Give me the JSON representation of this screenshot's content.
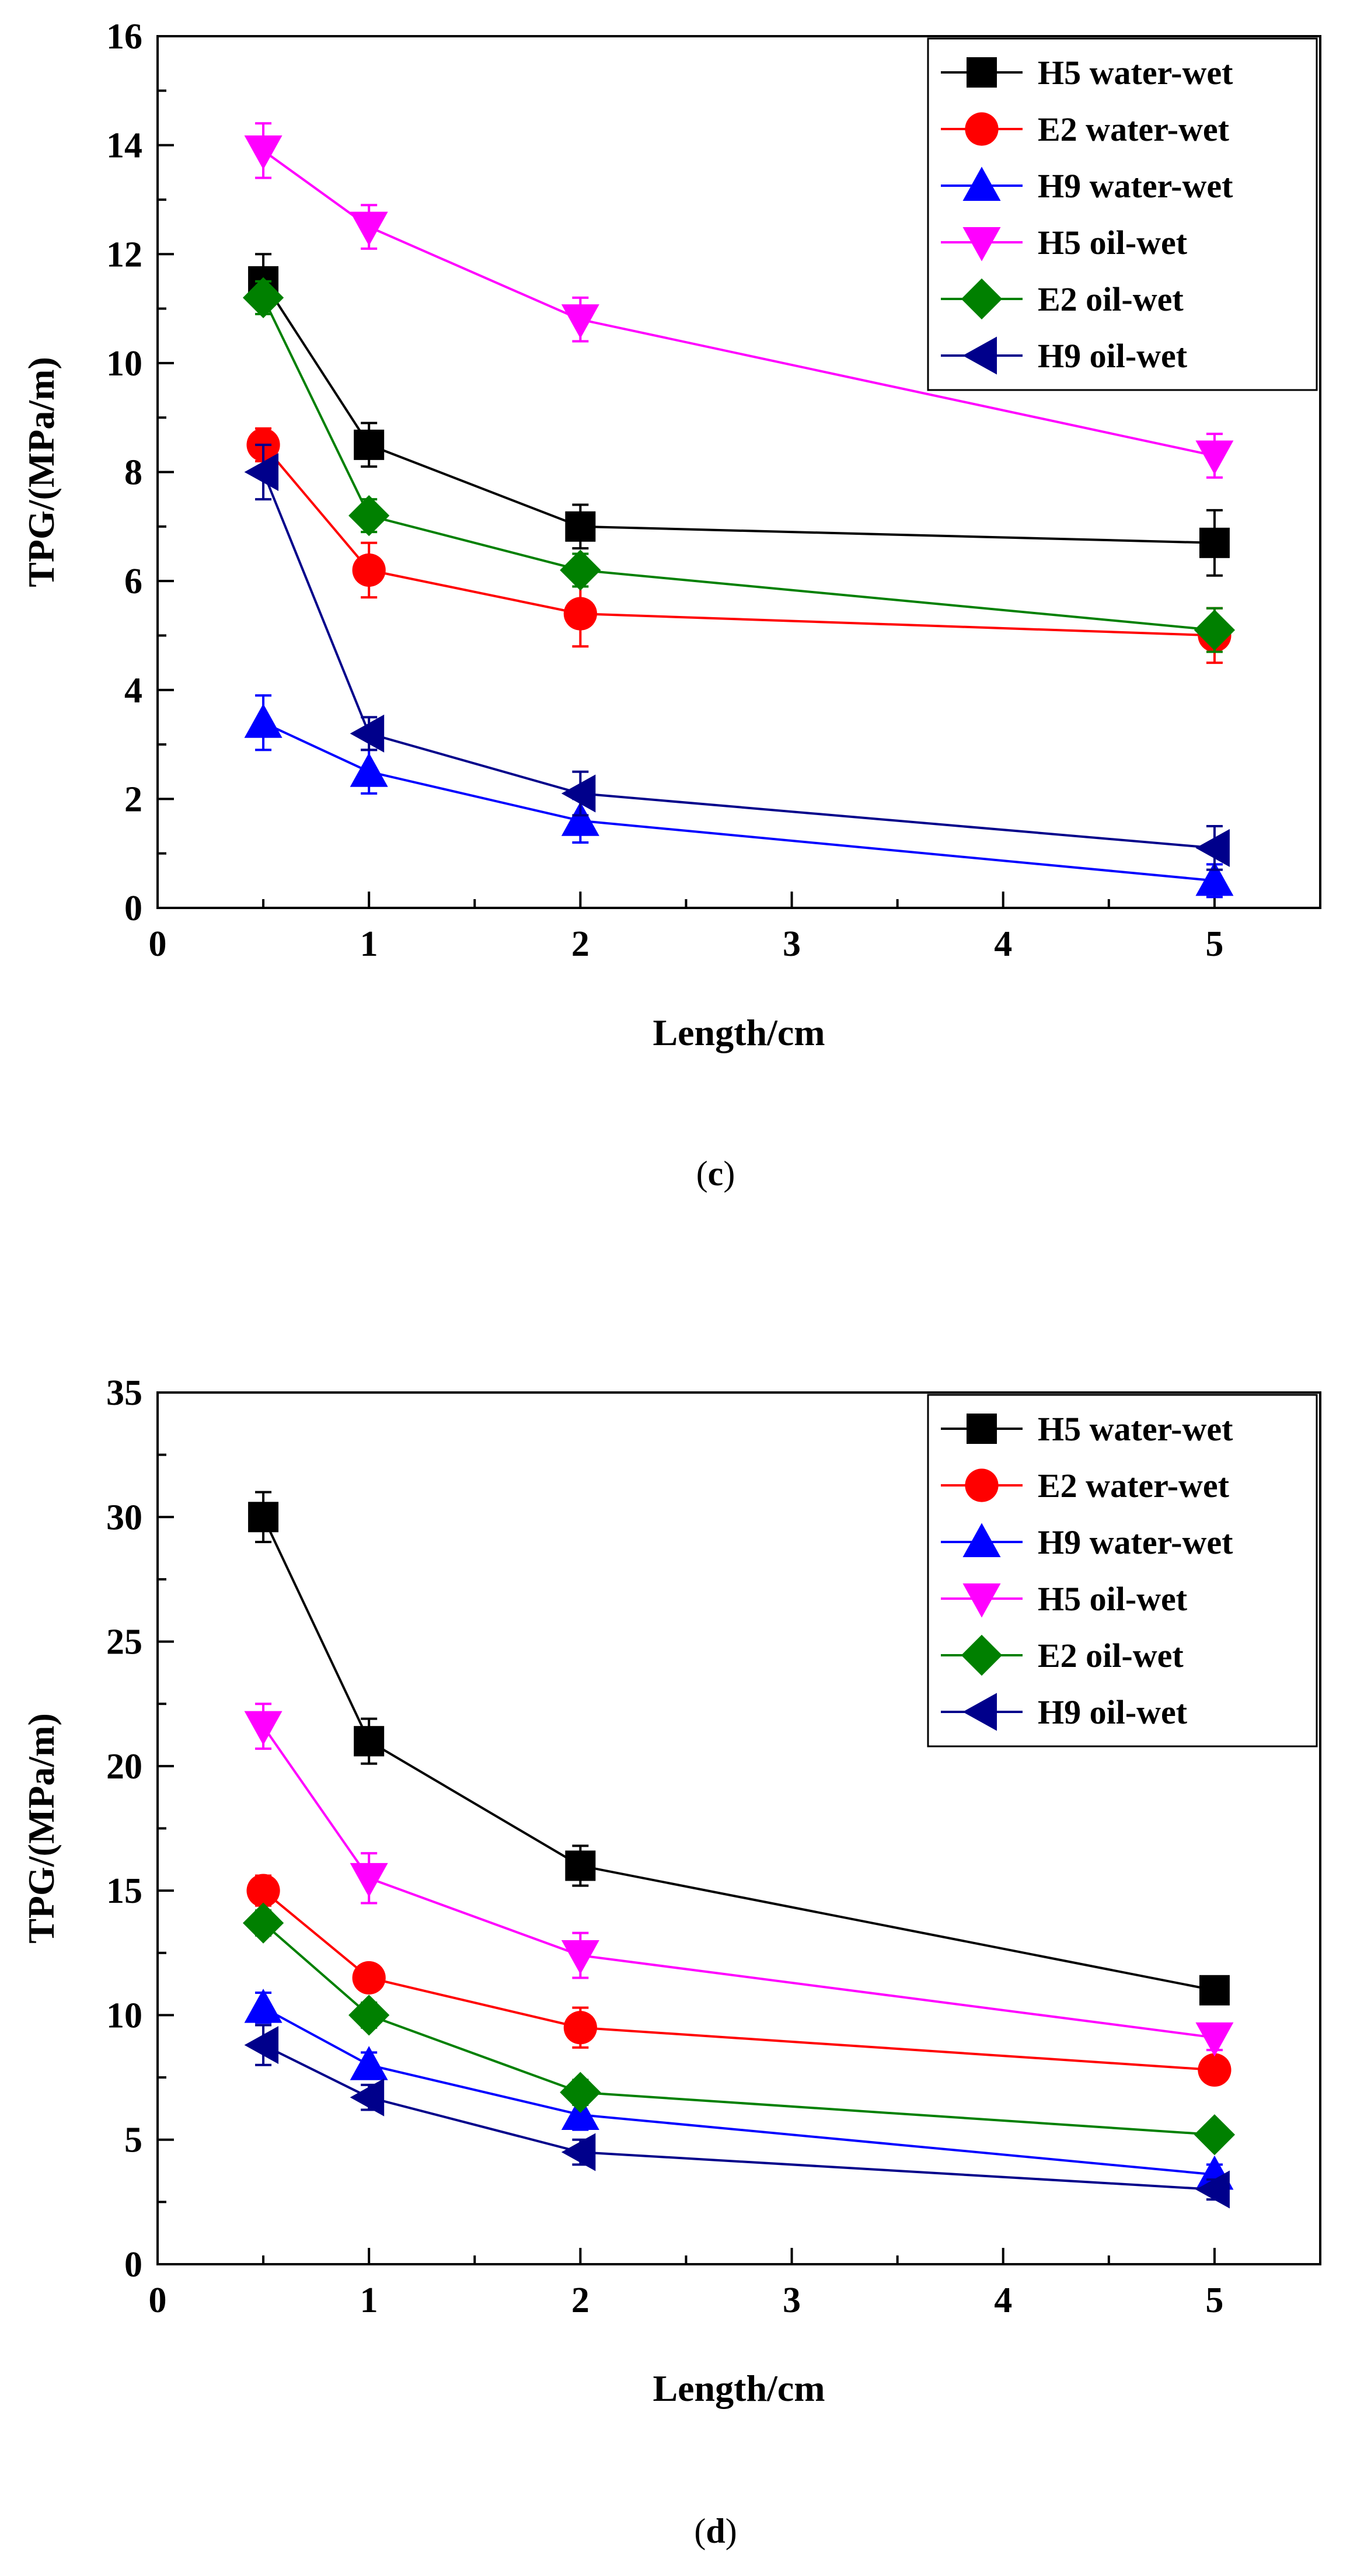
{
  "chart_data": [
    {
      "type": "line",
      "panel": "c",
      "caption_letter": "c",
      "title": "",
      "xlabel": "Length/cm",
      "ylabel": "TPG/(MPa/m)",
      "xlim": [
        0,
        5.5
      ],
      "ylim": [
        0,
        16
      ],
      "xticks": [
        0,
        1,
        2,
        3,
        4,
        5
      ],
      "yticks": [
        0,
        2,
        4,
        6,
        8,
        10,
        12,
        14,
        16
      ],
      "legend_position": "top-right",
      "grid": false,
      "x": [
        0.5,
        1,
        2,
        5
      ],
      "series": [
        {
          "name": "H5 water-wet",
          "color": "#000000",
          "marker": "square",
          "values": [
            11.5,
            8.5,
            7.0,
            6.7
          ],
          "errors": [
            0.5,
            0.4,
            0.4,
            0.6
          ]
        },
        {
          "name": "E2 water-wet",
          "color": "#ff0000",
          "marker": "circle",
          "values": [
            8.5,
            6.2,
            5.4,
            5.0
          ],
          "errors": [
            0.3,
            0.5,
            0.6,
            0.5
          ]
        },
        {
          "name": "H9 water-wet",
          "color": "#0000ff",
          "marker": "triangle-up",
          "values": [
            3.4,
            2.5,
            1.6,
            0.5
          ],
          "errors": [
            0.5,
            0.4,
            0.4,
            0.3
          ]
        },
        {
          "name": "H5 oil-wet",
          "color": "#ff00ff",
          "marker": "triangle-down",
          "values": [
            13.9,
            12.5,
            10.8,
            8.3
          ],
          "errors": [
            0.5,
            0.4,
            0.4,
            0.4
          ]
        },
        {
          "name": "E2 oil-wet",
          "color": "#008000",
          "marker": "diamond",
          "values": [
            11.2,
            7.2,
            6.2,
            5.1
          ],
          "errors": [
            0.3,
            0.3,
            0.3,
            0.4
          ]
        },
        {
          "name": "H9 oil-wet",
          "color": "#00008b",
          "marker": "triangle-left",
          "values": [
            8.0,
            3.2,
            2.1,
            1.1
          ],
          "errors": [
            0.5,
            0.3,
            0.4,
            0.4
          ]
        }
      ]
    },
    {
      "type": "line",
      "panel": "d",
      "caption_letter": "d",
      "title": "",
      "xlabel": "Length/cm",
      "ylabel": "TPG/(MPa/m)",
      "xlim": [
        0,
        5.5
      ],
      "ylim": [
        0,
        35
      ],
      "xticks": [
        0,
        1,
        2,
        3,
        4,
        5
      ],
      "yticks": [
        0,
        5,
        10,
        15,
        20,
        25,
        30,
        35
      ],
      "legend_position": "top-right",
      "grid": false,
      "x": [
        0.5,
        1,
        2,
        5
      ],
      "series": [
        {
          "name": "H5 water-wet",
          "color": "#000000",
          "marker": "square",
          "values": [
            30.0,
            21.0,
            16.0,
            11.0
          ],
          "errors": [
            1.0,
            0.9,
            0.8,
            0.5
          ]
        },
        {
          "name": "E2 water-wet",
          "color": "#ff0000",
          "marker": "circle",
          "values": [
            15.0,
            11.5,
            9.5,
            7.8
          ],
          "errors": [
            0.6,
            0.5,
            0.8,
            0.5
          ]
        },
        {
          "name": "H9 water-wet",
          "color": "#0000ff",
          "marker": "triangle-up",
          "values": [
            10.3,
            8.0,
            6.0,
            3.6
          ],
          "errors": [
            0.6,
            0.5,
            0.6,
            0.4
          ]
        },
        {
          "name": "H5 oil-wet",
          "color": "#ff00ff",
          "marker": "triangle-down",
          "values": [
            21.6,
            15.5,
            12.4,
            9.1
          ],
          "errors": [
            0.9,
            1.0,
            0.9,
            0.5
          ]
        },
        {
          "name": "E2 oil-wet",
          "color": "#008000",
          "marker": "diamond",
          "values": [
            13.7,
            10.0,
            6.9,
            5.2
          ],
          "errors": [
            0.5,
            0.5,
            0.5,
            0.4
          ]
        },
        {
          "name": "H9 oil-wet",
          "color": "#00008b",
          "marker": "triangle-left",
          "values": [
            8.8,
            6.7,
            4.5,
            3.0
          ],
          "errors": [
            0.8,
            0.5,
            0.5,
            0.4
          ]
        }
      ]
    }
  ]
}
